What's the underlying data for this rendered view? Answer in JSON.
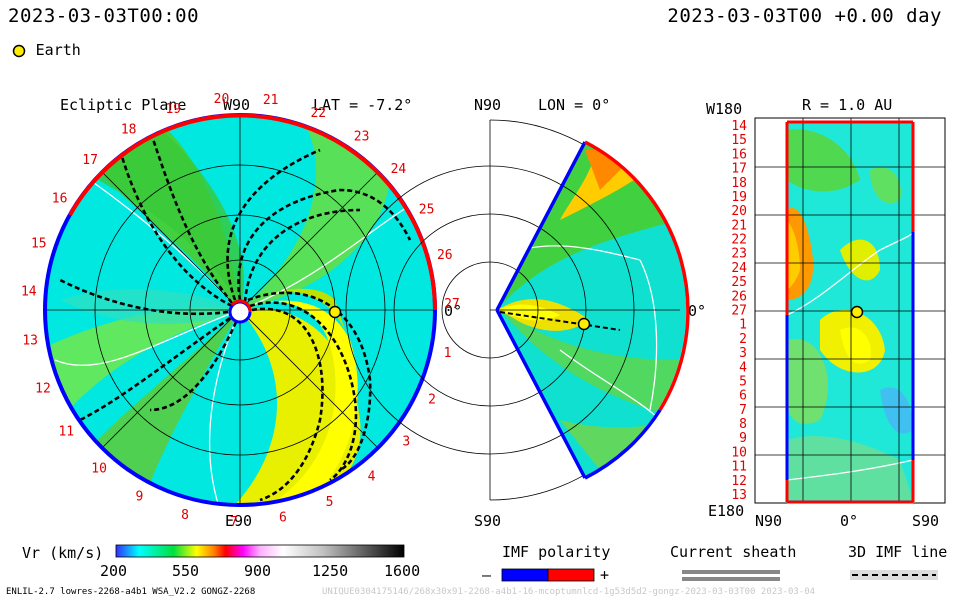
{
  "header": {
    "left_time": "2023-03-03T00:00",
    "right_time": "2023-03-03T00 +0.00 day"
  },
  "legend": {
    "earth_label": "Earth",
    "earth_color": "#ffee00"
  },
  "ecliptic_panel": {
    "title": "Ecliptic Plane",
    "top_label": "W90",
    "bottom_label": "E90",
    "lat_label": "LAT = -7.2°",
    "right_label": "0°",
    "rotation_numbers": [
      "20",
      "21",
      "22",
      "23",
      "24",
      "25",
      "26",
      "27",
      "1",
      "2",
      "3",
      "4",
      "5",
      "6",
      "7",
      "8",
      "9",
      "10",
      "11",
      "12",
      "13",
      "14",
      "15",
      "16",
      "17",
      "18",
      "19"
    ]
  },
  "meridian_panel": {
    "top_label": "N90",
    "bottom_label": "S90",
    "lon_label": "LON = 0°",
    "right_label": "0°"
  },
  "radial_panel": {
    "top_left_label": "W180",
    "bottom_left_label": "E180",
    "r_label": "R = 1.0 AU",
    "y_ticks": [
      "14",
      "15",
      "16",
      "17",
      "18",
      "19",
      "20",
      "21",
      "22",
      "23",
      "24",
      "25",
      "26",
      "27",
      "1",
      "2",
      "3",
      "4",
      "5",
      "6",
      "7",
      "8",
      "9",
      "10",
      "11",
      "12",
      "13"
    ],
    "x_ticks": [
      "N90",
      "0°",
      "S90"
    ]
  },
  "colorbar": {
    "label": "Vr (km/s)",
    "ticks": [
      "200",
      "550",
      "900",
      "1250",
      "1600"
    ],
    "range": [
      200,
      1600
    ]
  },
  "imf_polarity": {
    "title": "IMF polarity",
    "minus": "–",
    "plus": "+",
    "neg_color": "#0000ff",
    "pos_color": "#ff0000"
  },
  "current_sheath": {
    "title": "Current sheath"
  },
  "imf_line": {
    "title": "3D IMF line"
  },
  "footer": {
    "left": "ENLIL-2.7 lowres-2268-a4b1 WSA_V2.2 GONGZ-2268",
    "right": "UNIQUE0304175146/268x30x91-2268-a4b1-16-mcoptumnlcd-1g53d5d2-gongz-2023-03-03T00  2023-03-04"
  }
}
